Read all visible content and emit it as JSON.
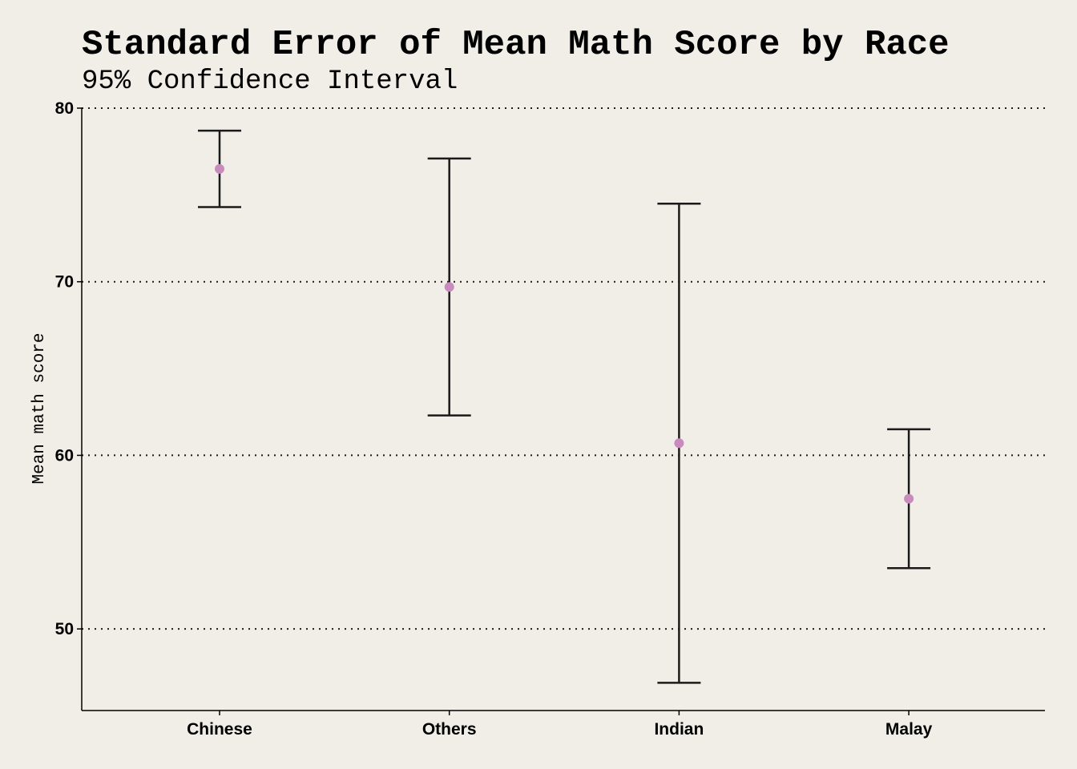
{
  "chart_data": {
    "type": "errorbar",
    "title": "Standard Error of Mean Math Score by Race",
    "subtitle": "95% Confidence Interval",
    "xlabel": "",
    "ylabel": "Mean math score",
    "categories": [
      "Chinese",
      "Others",
      "Indian",
      "Malay"
    ],
    "means": [
      76.5,
      69.7,
      60.7,
      57.5
    ],
    "lower": [
      74.3,
      62.3,
      46.9,
      53.5
    ],
    "upper": [
      78.7,
      77.1,
      74.5,
      61.5
    ],
    "yticks": [
      50,
      60,
      70,
      80
    ],
    "ylim": [
      45.3,
      80
    ],
    "grid": "horizontal dotted",
    "colors": {
      "background": "#f0eee6",
      "point": "#c98bbd",
      "errorbar": "#1a1a1a",
      "grid": "#1a1a1a"
    }
  }
}
